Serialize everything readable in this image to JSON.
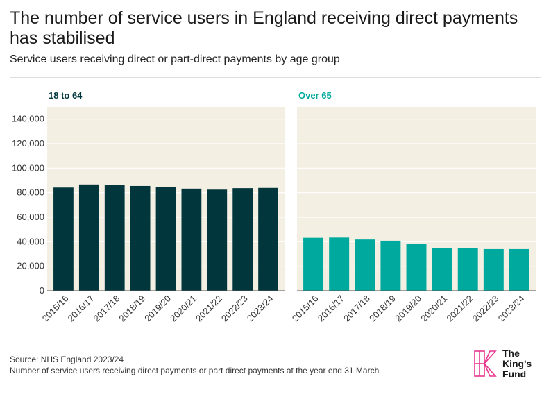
{
  "title": "The number of service users in England receiving direct payments has stabilised",
  "subtitle": "Service users receiving direct or part-direct payments by age group",
  "footer": {
    "source": "Source: NHS England 2023/24",
    "note": "Number of service users receiving direct payments or part direct payments at the year end 31 March"
  },
  "logo": {
    "line1": "The",
    "line2": "King's",
    "line3": "Fund",
    "icon": "kings-fund-k-icon"
  },
  "colors": {
    "panel_bg": "#f4efe3",
    "series_18_64": "#01363d",
    "series_over65": "#00a99d",
    "logo_pink": "#e8358d"
  },
  "chart_data": [
    {
      "type": "bar",
      "panel_label": "18 to 64",
      "categories": [
        "2015/16",
        "2016/17",
        "2017/18",
        "2018/19",
        "2019/20",
        "2020/21",
        "2021/22",
        "2022/23",
        "2023/24"
      ],
      "values": [
        84200,
        86700,
        86600,
        85500,
        84600,
        83300,
        82500,
        83700,
        83900
      ],
      "ylim": [
        0,
        150000
      ],
      "yticks": [
        0,
        20000,
        40000,
        60000,
        80000,
        100000,
        120000,
        140000
      ],
      "ytick_labels": [
        "0",
        "20,000",
        "40,000",
        "60,000",
        "80,000",
        "100,000",
        "120,000",
        "140,000"
      ],
      "grid": true,
      "color": "#01363d"
    },
    {
      "type": "bar",
      "panel_label": "Over 65",
      "categories": [
        "2015/16",
        "2016/17",
        "2017/18",
        "2018/19",
        "2019/20",
        "2020/21",
        "2021/22",
        "2022/23",
        "2023/24"
      ],
      "values": [
        43200,
        43400,
        41800,
        40800,
        38300,
        35000,
        34700,
        34000,
        34000
      ],
      "ylim": [
        0,
        150000
      ],
      "yticks": [
        0,
        20000,
        40000,
        60000,
        80000,
        100000,
        120000,
        140000
      ],
      "grid": true,
      "color": "#00a99d"
    }
  ]
}
